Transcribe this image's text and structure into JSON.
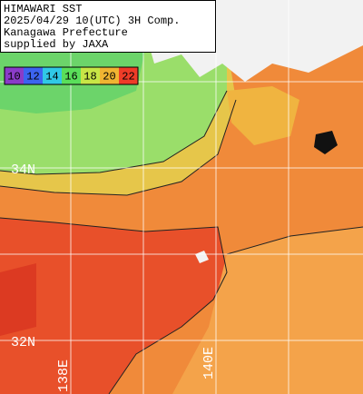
{
  "header": {
    "lines": [
      "HIMAWARI SST",
      "2025/04/29 10(UTC) 3H Comp.",
      "Kanagawa Prefecture",
      "supplied by JAXA"
    ]
  },
  "legend": {
    "labels": [
      10,
      12,
      14,
      16,
      18,
      20,
      22
    ],
    "colors": [
      "#8a3cc8",
      "#3c64f0",
      "#30c8e6",
      "#5ade5a",
      "#c8e646",
      "#f0b432",
      "#ee3c28"
    ]
  },
  "grid": {
    "lat_labels": [
      "34N",
      "32N"
    ],
    "lon_labels": [
      "138E",
      "140E"
    ]
  }
}
